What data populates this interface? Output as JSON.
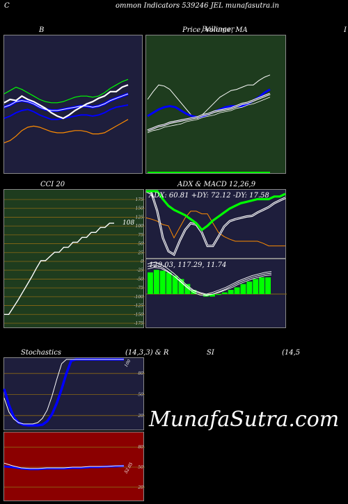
{
  "header": {
    "left_letter": "C",
    "title": "ommon  Indicators 539246  JEL  munafasutra.in",
    "right_letter": "I"
  },
  "panels": {
    "bollinger": {
      "title": "B"
    },
    "price_ma": {
      "title": "Price,  Volume,  MA",
      "overlap_title": "Bollinger"
    },
    "cci": {
      "title": "CCI 20",
      "value_label": "108"
    },
    "adx": {
      "title": "ADX  & MACD 12,26,9",
      "values_text": "ADX: 60.81 +DY: 72.12 -DY: 17.58"
    },
    "macd": {
      "values_text": "129.03,  117.29,  11.74"
    },
    "stoch": {
      "title_left": "Stochastics",
      "title_mid": "(14,3,3) & R",
      "value_label": "100"
    },
    "rsi": {
      "title_mid": "SI",
      "title_right": "(14,5",
      "value_label": "52.05"
    }
  },
  "watermark": "MunafaSutra.com",
  "colors": {
    "navy_panel": "#1e1e3c",
    "green_panel": "#1e3c1e",
    "red_panel": "#8b0000",
    "gridline": "#8b6914",
    "blue_line": "#0000ff",
    "green_line": "#00ff00",
    "orange_line": "#ff8c00"
  },
  "chart_data": [
    {
      "id": "bollinger",
      "type": "line",
      "series": [
        {
          "values": [
            60,
            63,
            66,
            64,
            61,
            58,
            55,
            53,
            52,
            52,
            53,
            55,
            57,
            58,
            58,
            57,
            58,
            61,
            65,
            68,
            71,
            73
          ]
        },
        {
          "values": [
            48,
            50,
            53,
            54,
            53,
            51,
            48,
            46,
            45,
            45,
            46,
            47,
            48,
            49,
            49,
            48,
            49,
            51,
            54,
            56,
            58,
            60
          ]
        },
        {
          "values": [
            38,
            40,
            43,
            45,
            46,
            44,
            41,
            39,
            37,
            37,
            38,
            39,
            40,
            41,
            41,
            40,
            41,
            43,
            46,
            48,
            49,
            50
          ]
        },
        {
          "values": [
            16,
            18,
            22,
            27,
            30,
            31,
            30,
            28,
            26,
            25,
            25,
            26,
            27,
            27,
            26,
            24,
            24,
            25,
            28,
            31,
            34,
            37
          ]
        },
        {
          "values": [
            52,
            55,
            54,
            58,
            55,
            53,
            50,
            47,
            43,
            40,
            38,
            41,
            45,
            48,
            51,
            53,
            56,
            58,
            62,
            62,
            66,
            68
          ]
        }
      ]
    },
    {
      "id": "price_ma",
      "type": "line",
      "series": [
        {
          "values": [
            55,
            62,
            68,
            67,
            64,
            58,
            52,
            46,
            40,
            38,
            42,
            47,
            52,
            57,
            60,
            63,
            64,
            66,
            68,
            68,
            72,
            75,
            77
          ]
        },
        {
          "values": [
            40,
            43,
            46,
            48,
            49,
            48,
            45,
            42,
            40,
            39,
            40,
            42,
            44,
            46,
            48,
            49,
            49,
            49,
            51,
            54,
            57,
            61,
            64
          ]
        },
        {
          "values": [
            27,
            29,
            31,
            32,
            34,
            35,
            36,
            37,
            38,
            39,
            41,
            42,
            44,
            45,
            46,
            47,
            49,
            51,
            52,
            54,
            56,
            58,
            60
          ]
        },
        {
          "values": [
            25,
            27,
            28,
            30,
            31,
            32,
            33,
            35,
            36,
            37,
            39,
            40,
            41,
            43,
            44,
            45,
            47,
            48,
            50,
            51,
            53,
            55,
            57
          ]
        }
      ]
    },
    {
      "id": "cci",
      "type": "line",
      "ylim": [
        -175,
        175
      ],
      "ticks": [
        175,
        150,
        125,
        100,
        75,
        50,
        25,
        0,
        -25,
        -50,
        -75,
        -100,
        -125,
        -150,
        -175
      ],
      "values": [
        -150,
        -150,
        -130,
        -110,
        -88,
        -66,
        -44,
        -20,
        2,
        2,
        14,
        26,
        26,
        40,
        40,
        54,
        54,
        68,
        68,
        82,
        82,
        96,
        96,
        108,
        108
      ]
    },
    {
      "id": "adx",
      "type": "line",
      "series": [
        {
          "name": "ADX",
          "values": [
            100,
            100,
            100,
            88,
            78,
            72,
            68,
            64,
            58,
            52,
            42,
            48,
            56,
            62,
            68,
            74,
            78,
            82,
            84,
            86,
            88,
            88,
            88,
            92,
            92,
            96
          ]
        },
        {
          "name": "+DY",
          "values": [
            100,
            96,
            70,
            30,
            10,
            5,
            25,
            42,
            52,
            50,
            38,
            18,
            18,
            32,
            47,
            55,
            58,
            60,
            62,
            63,
            68,
            72,
            76,
            82,
            86,
            90
          ]
        },
        {
          "name": "-DY",
          "values": [
            60,
            58,
            55,
            50,
            48,
            30,
            45,
            60,
            70,
            70,
            66,
            66,
            52,
            38,
            32,
            28,
            25,
            25,
            25,
            25,
            25,
            22,
            18,
            18,
            18,
            18
          ]
        }
      ]
    },
    {
      "id": "macd",
      "type": "bar",
      "bars": [
        26,
        29,
        28,
        26,
        22,
        18,
        12,
        5,
        0,
        -3,
        -3,
        -1,
        2,
        5,
        8,
        12,
        15,
        18,
        20,
        20
      ],
      "series": [
        {
          "values": [
            33,
            35,
            33,
            28,
            22,
            15,
            8,
            2,
            -1,
            -2,
            0,
            3,
            6,
            10,
            14,
            17,
            20,
            22,
            24,
            25
          ]
        },
        {
          "values": [
            30,
            32,
            31,
            27,
            22,
            16,
            9,
            4,
            1,
            -1,
            0,
            2,
            5,
            8,
            12,
            15,
            18,
            20,
            22,
            23
          ]
        },
        {
          "values": [
            36,
            38,
            36,
            31,
            25,
            18,
            11,
            5,
            2,
            0,
            2,
            5,
            8,
            12,
            16,
            19,
            22,
            24,
            26,
            27
          ]
        }
      ]
    },
    {
      "id": "stoch",
      "type": "line",
      "ylim": [
        0,
        100
      ],
      "ticks": [
        80,
        50,
        20
      ],
      "series": [
        {
          "values": [
            58,
            35,
            18,
            10,
            7,
            6,
            6,
            6,
            7,
            12,
            22,
            38,
            58,
            80,
            98,
            100,
            100,
            100,
            100,
            100,
            100,
            100,
            100,
            100,
            100,
            100
          ]
        },
        {
          "values": [
            45,
            25,
            15,
            10,
            8,
            8,
            8,
            10,
            16,
            28,
            48,
            72,
            94,
            100,
            100,
            100,
            100,
            100,
            100,
            100,
            100,
            100,
            100,
            100,
            100,
            100
          ]
        }
      ]
    },
    {
      "id": "rsi",
      "type": "line",
      "ylim": [
        0,
        100
      ],
      "ticks": [
        80,
        50,
        20
      ],
      "series": [
        {
          "values": [
            51,
            50,
            48,
            47,
            47,
            48,
            48,
            48,
            49,
            49,
            50,
            50,
            51,
            51,
            52
          ]
        },
        {
          "values": [
            56,
            52,
            49,
            48,
            48,
            49,
            49,
            49,
            50,
            50,
            51,
            51,
            51,
            52,
            52
          ]
        }
      ]
    }
  ]
}
